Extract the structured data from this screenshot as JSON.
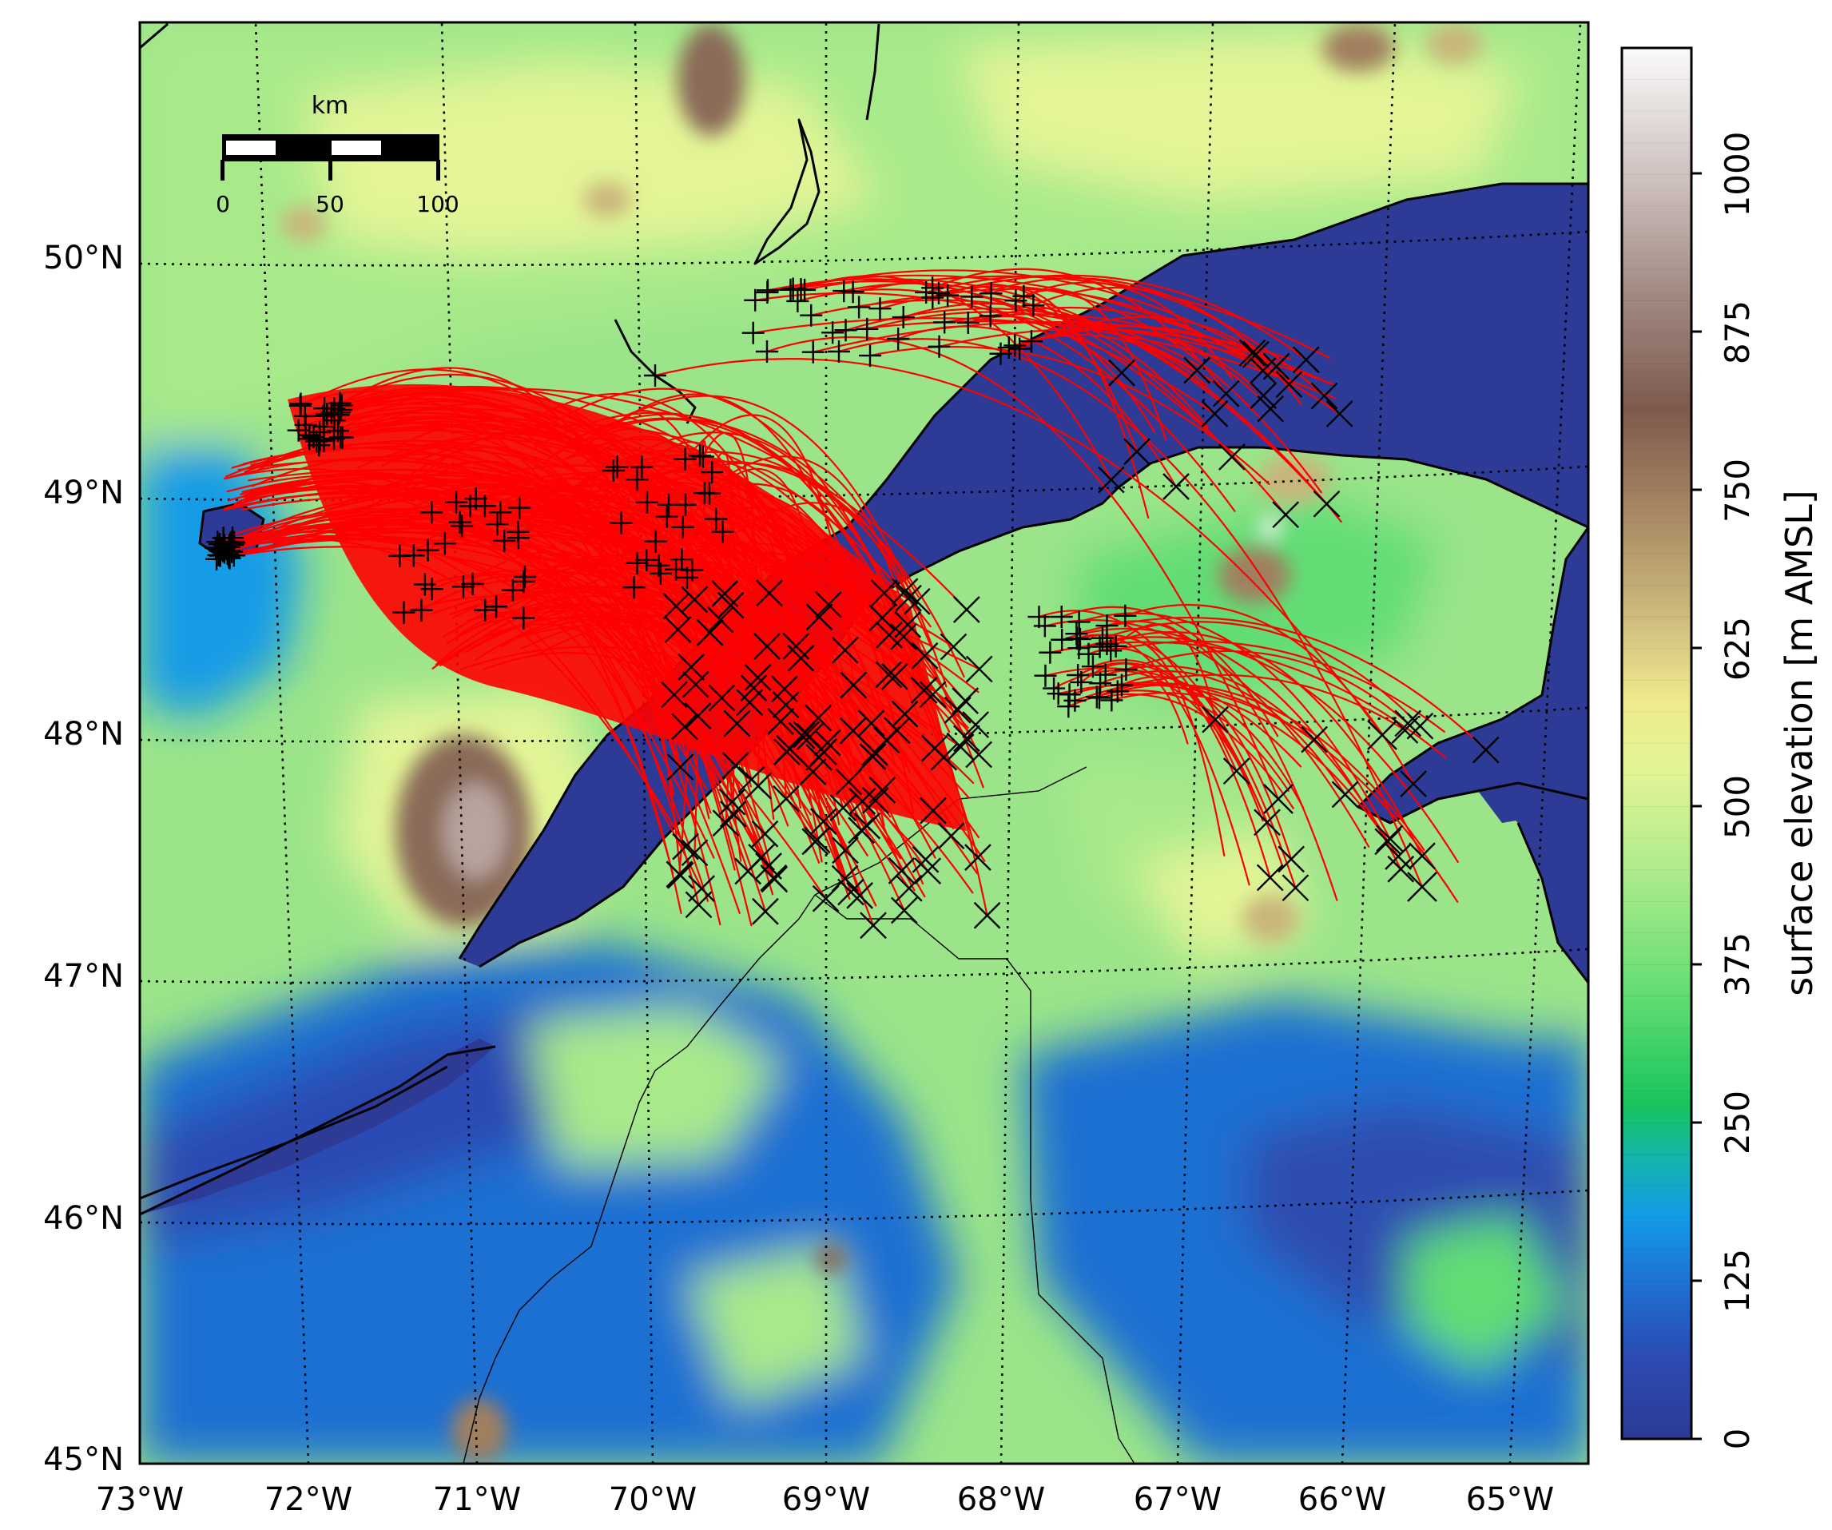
{
  "map": {
    "lat_labels": [
      "45°N",
      "46°N",
      "47°N",
      "48°N",
      "49°N",
      "50°N"
    ],
    "lon_labels": [
      "73°W",
      "72°W",
      "71°W",
      "70°W",
      "69°W",
      "68°W",
      "67°W",
      "66°W",
      "65°W"
    ],
    "lat_range": [
      45,
      51
    ],
    "lon_range": [
      -73,
      -64.5
    ],
    "grid": "dotted",
    "trajectory_color": "#ff0000",
    "start_marker": "plus",
    "end_marker": "x",
    "elevation_colors": [
      "#2d3a96",
      "#1f6fd1",
      "#129be6",
      "#18c45c",
      "#62dd74",
      "#a8ea8a",
      "#eef596",
      "#c9b57a",
      "#8a6a58",
      "#b8a49e",
      "#f2f2f2"
    ],
    "water_color": "#2d3a96"
  },
  "scale_bar": {
    "unit_label": "km",
    "tick_labels": [
      "0",
      "50",
      "100"
    ]
  },
  "colorbar": {
    "label": "surface elevation [m AMSL]",
    "tick_labels": [
      "0",
      "125",
      "250",
      "375",
      "500",
      "625",
      "750",
      "875",
      "1000"
    ],
    "range": [
      0,
      1100
    ]
  }
}
